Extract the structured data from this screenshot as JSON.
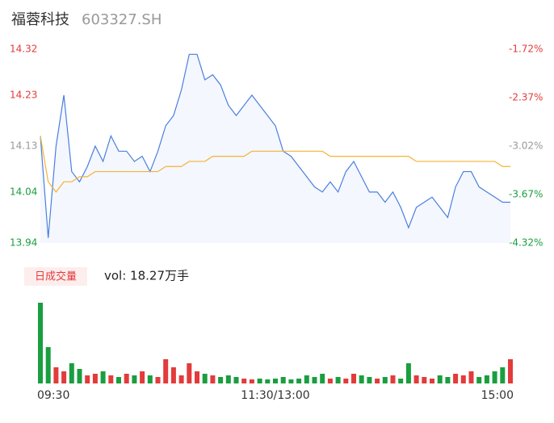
{
  "chart_data": [
    {
      "type": "line",
      "title": "福蓉科技",
      "subtitle": "603327.SH",
      "x": [
        0,
        4,
        8,
        12,
        16,
        20,
        24,
        28,
        32,
        36,
        40,
        44,
        48,
        52,
        56,
        60,
        64,
        68,
        72,
        76,
        80,
        84,
        88,
        92,
        96,
        100,
        104,
        108,
        112,
        116,
        120,
        124,
        128,
        132,
        136,
        140,
        144,
        148,
        152,
        156,
        160,
        164,
        168,
        172,
        176,
        180,
        184,
        188,
        192,
        196,
        200,
        204,
        208,
        212,
        216,
        220,
        224,
        228,
        232,
        236,
        240
      ],
      "xlim": [
        0,
        240
      ],
      "xticks": [
        {
          "value": 0,
          "label": "09:30"
        },
        {
          "value": 120,
          "label": "11:30/13:00"
        },
        {
          "value": 240,
          "label": "15:00"
        }
      ],
      "ylim": [
        13.94,
        14.32
      ],
      "yticks": [
        13.94,
        14.04,
        14.13,
        14.23,
        14.32
      ],
      "ytick_colors": [
        "#1a9e3f",
        "#1a9e3f",
        "#999999",
        "#e33b3b",
        "#e33b3b"
      ],
      "y2lim": [
        -4.32,
        -1.72
      ],
      "y2ticks": [
        {
          "value": -4.32,
          "label": "-4.32%"
        },
        {
          "value": -3.67,
          "label": "-3.67%"
        },
        {
          "value": -3.02,
          "label": "-3.02%"
        },
        {
          "value": -2.37,
          "label": "-2.37%"
        },
        {
          "value": -1.72,
          "label": "-1.72%"
        }
      ],
      "series": [
        {
          "color": "#4a7fe0",
          "values": [
            14.15,
            13.95,
            14.13,
            14.23,
            14.08,
            14.06,
            14.09,
            14.13,
            14.1,
            14.15,
            14.12,
            14.12,
            14.1,
            14.11,
            14.08,
            14.12,
            14.17,
            14.19,
            14.24,
            14.31,
            14.31,
            14.26,
            14.27,
            14.25,
            14.21,
            14.19,
            14.21,
            14.23,
            14.21,
            14.19,
            14.17,
            14.12,
            14.11,
            14.09,
            14.07,
            14.05,
            14.04,
            14.06,
            14.04,
            14.08,
            14.1,
            14.07,
            14.04,
            14.04,
            14.02,
            14.04,
            14.01,
            13.97,
            14.01,
            14.02,
            14.03,
            14.01,
            13.99,
            14.05,
            14.08,
            14.08,
            14.05,
            14.04,
            14.03,
            14.02,
            14.02
          ]
        },
        {
          "color": "#f5b335",
          "values": [
            14.15,
            14.06,
            14.04,
            14.06,
            14.06,
            14.07,
            14.07,
            14.08,
            14.08,
            14.08,
            14.08,
            14.08,
            14.08,
            14.08,
            14.08,
            14.08,
            14.09,
            14.09,
            14.09,
            14.1,
            14.1,
            14.1,
            14.11,
            14.11,
            14.11,
            14.11,
            14.11,
            14.12,
            14.12,
            14.12,
            14.12,
            14.12,
            14.12,
            14.12,
            14.12,
            14.12,
            14.12,
            14.11,
            14.11,
            14.11,
            14.11,
            14.11,
            14.11,
            14.11,
            14.11,
            14.11,
            14.11,
            14.11,
            14.1,
            14.1,
            14.1,
            14.1,
            14.1,
            14.1,
            14.1,
            14.1,
            14.1,
            14.1,
            14.1,
            14.09,
            14.09
          ]
        }
      ]
    },
    {
      "type": "bar",
      "title": "日成交量",
      "annotation": "vol: 18.27万手",
      "ylim": [
        0,
        100
      ],
      "up_color": "#e33b3b",
      "down_color": "#1a9e3f",
      "values": [
        100,
        45,
        20,
        15,
        25,
        18,
        10,
        12,
        15,
        10,
        8,
        12,
        10,
        15,
        10,
        8,
        30,
        20,
        10,
        25,
        15,
        12,
        10,
        8,
        10,
        8,
        6,
        5,
        6,
        5,
        6,
        8,
        5,
        6,
        10,
        8,
        12,
        6,
        8,
        6,
        12,
        10,
        8,
        6,
        8,
        10,
        6,
        25,
        10,
        8,
        6,
        10,
        8,
        12,
        10,
        15,
        8,
        10,
        15,
        20,
        30
      ]
    }
  ]
}
